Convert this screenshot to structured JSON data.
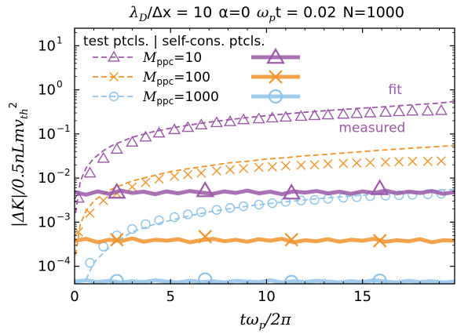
{
  "chart_data": {
    "type": "line",
    "title": "λ_D/Δx = 10  α=0  ω_p t = 0.02  N=1000",
    "title_parts": {
      "lambda_dx": "λ",
      "lambda_sub": "D",
      "lambda_rest": "/Δx = 10",
      "alpha": "α=0",
      "omega": "ω",
      "omega_sub": "p",
      "omega_rest": "t = 0.02",
      "n": "N=1000"
    },
    "xlabel": "tω_p/2π",
    "xlabel_parts": {
      "t": "tω",
      "sub": "p",
      "rest": "/2π"
    },
    "ylabel": "|ΔK|/0.5nLmv_th^2",
    "ylabel_parts": {
      "main": "|ΔK|/0.5nLmv",
      "sub": "th",
      "sup": "2"
    },
    "xlim": [
      0,
      19.8
    ],
    "ylim": [
      4e-05,
      25
    ],
    "yscale": "log",
    "xticks": [
      0,
      5,
      10,
      15
    ],
    "xtick_labels": [
      "0",
      "5",
      "10",
      "15"
    ],
    "yticks": [
      0.0001,
      0.001,
      0.01,
      0.1,
      1,
      10
    ],
    "ytick_labels": [
      {
        "base": "10",
        "exp": "−4"
      },
      {
        "base": "10",
        "exp": "−3"
      },
      {
        "base": "10",
        "exp": "−2"
      },
      {
        "base": "10",
        "exp": "−1"
      },
      {
        "base": "10",
        "exp": "0"
      },
      {
        "base": "10",
        "exp": "1"
      }
    ],
    "legend": {
      "position": "top-left",
      "header": "test ptcls.  |  self-cons. ptcls.",
      "entries": [
        {
          "label_main": "M",
          "label_sub": "ppc",
          "label_val": "=10",
          "color": "#9b59a8",
          "marker": "triangle"
        },
        {
          "label_main": "M",
          "label_sub": "ppc",
          "label_val": "=100",
          "color": "#f0932b",
          "marker": "x"
        },
        {
          "label_main": "M",
          "label_sub": "ppc",
          "label_val": "=1000",
          "color": "#90c3ea",
          "marker": "circle"
        }
      ]
    },
    "annotations": [
      {
        "text": "fit",
        "x": 16.7,
        "y": 0.8,
        "color": "#9b59a8"
      },
      {
        "text": "measured",
        "x": 15.5,
        "y": 0.11,
        "color": "#9b59a8"
      }
    ],
    "series": [
      {
        "kind": "fit",
        "color": "#9b59a8",
        "dash": "dashed",
        "x": [
          0.05,
          0.3,
          0.6,
          1,
          1.5,
          2,
          3,
          4,
          5,
          6,
          7,
          8,
          9,
          10,
          11,
          12,
          13,
          14,
          15,
          16,
          17,
          18,
          19,
          19.8
        ],
        "y": [
          0.0016,
          0.0085,
          0.017,
          0.028,
          0.042,
          0.056,
          0.084,
          0.11,
          0.135,
          0.16,
          0.185,
          0.21,
          0.235,
          0.26,
          0.285,
          0.31,
          0.335,
          0.36,
          0.385,
          0.41,
          0.44,
          0.47,
          0.5,
          0.55
        ]
      },
      {
        "kind": "fit",
        "color": "#f0932b",
        "dash": "dashed",
        "x": [
          0.05,
          0.3,
          0.6,
          1,
          1.5,
          2,
          3,
          4,
          5,
          6,
          7,
          8,
          9,
          10,
          11,
          12,
          13,
          14,
          15,
          16,
          17,
          18,
          19,
          19.8
        ],
        "y": [
          0.00018,
          0.0009,
          0.0018,
          0.003,
          0.0044,
          0.0058,
          0.0086,
          0.011,
          0.014,
          0.0165,
          0.019,
          0.022,
          0.024,
          0.027,
          0.029,
          0.032,
          0.034,
          0.037,
          0.04,
          0.043,
          0.046,
          0.049,
          0.052,
          0.055
        ]
      },
      {
        "kind": "fit",
        "color": "#90c3ea",
        "dash": "dashed",
        "x": [
          0.6,
          1,
          1.5,
          2,
          3,
          4,
          5,
          6,
          7,
          8,
          9,
          10,
          11,
          12,
          13,
          14,
          15,
          16,
          17,
          18,
          19,
          19.8
        ],
        "y": [
          5e-05,
          0.00012,
          0.0002,
          0.00032,
          0.0006,
          0.00085,
          0.0011,
          0.0014,
          0.0017,
          0.002,
          0.0023,
          0.0026,
          0.0029,
          0.0032,
          0.0035,
          0.0038,
          0.0041,
          0.0044,
          0.0047,
          0.005,
          0.0053,
          0.0055
        ]
      },
      {
        "kind": "test-markers",
        "color": "#9b59a8",
        "marker": "triangle",
        "x": [
          0.2,
          0.8,
          1.5,
          2.2,
          3.0,
          3.7,
          4.4,
          5.2,
          5.9,
          6.6,
          7.4,
          8.1,
          8.8,
          9.6,
          10.3,
          11.0,
          11.8,
          12.5,
          13.2,
          14.0,
          14.7,
          15.4,
          16.2,
          16.9,
          17.6,
          18.4,
          19.1
        ],
        "y": [
          0.0035,
          0.013,
          0.028,
          0.045,
          0.065,
          0.085,
          0.105,
          0.125,
          0.14,
          0.16,
          0.18,
          0.19,
          0.21,
          0.22,
          0.23,
          0.24,
          0.25,
          0.26,
          0.27,
          0.28,
          0.29,
          0.3,
          0.31,
          0.32,
          0.33,
          0.33,
          0.34
        ]
      },
      {
        "kind": "test-markers",
        "color": "#f0932b",
        "marker": "x",
        "x": [
          0.2,
          0.8,
          1.5,
          2.2,
          3.0,
          3.7,
          4.4,
          5.2,
          5.9,
          6.6,
          7.4,
          8.1,
          8.8,
          9.6,
          10.3,
          11.0,
          11.8,
          12.5,
          13.2,
          14.0,
          14.7,
          15.4,
          16.2,
          16.9,
          17.6,
          18.4,
          19.1
        ],
        "y": [
          0.0006,
          0.0016,
          0.0031,
          0.0045,
          0.0063,
          0.008,
          0.0095,
          0.011,
          0.012,
          0.013,
          0.0145,
          0.0155,
          0.0165,
          0.0175,
          0.018,
          0.019,
          0.0195,
          0.02,
          0.021,
          0.0215,
          0.022,
          0.0225,
          0.023,
          0.0235,
          0.024,
          0.024,
          0.0245
        ]
      },
      {
        "kind": "test-markers",
        "color": "#90c3ea",
        "marker": "circle",
        "x": [
          0.8,
          1.5,
          2.2,
          3.0,
          3.7,
          4.4,
          5.2,
          5.9,
          6.6,
          7.4,
          8.1,
          8.8,
          9.6,
          10.3,
          11.0,
          11.8,
          12.5,
          13.2,
          14.0,
          14.7,
          15.4,
          16.2,
          16.9,
          17.6,
          18.4,
          19.1
        ],
        "y": [
          0.00012,
          0.00028,
          0.0005,
          0.0007,
          0.0009,
          0.0011,
          0.0013,
          0.0015,
          0.0017,
          0.0019,
          0.0021,
          0.0023,
          0.0025,
          0.0027,
          0.0029,
          0.0031,
          0.0032,
          0.0034,
          0.0036,
          0.0037,
          0.0039,
          0.004,
          0.0041,
          0.0042,
          0.0043,
          0.0044
        ]
      },
      {
        "kind": "self-consistent",
        "color": "#9b59a8",
        "marker": "triangle",
        "x": [
          0.0,
          0.6,
          1.2,
          1.8,
          2.4,
          3.0,
          3.6,
          4.2,
          4.8,
          5.4,
          6.0,
          6.6,
          7.2,
          7.8,
          8.4,
          9.0,
          9.6,
          10.2,
          10.8,
          11.4,
          12.0,
          12.6,
          13.2,
          13.8,
          14.4,
          15.0,
          15.6,
          16.2,
          16.8,
          17.4,
          18.0,
          18.6,
          19.2,
          19.8
        ],
        "y": [
          0.0048,
          0.0042,
          0.005,
          0.0044,
          0.0052,
          0.0046,
          0.0049,
          0.0043,
          0.005,
          0.0045,
          0.0051,
          0.0047,
          0.0044,
          0.005,
          0.0046,
          0.0052,
          0.0045,
          0.0049,
          0.0043,
          0.005,
          0.0047,
          0.0051,
          0.0045,
          0.0049,
          0.0044,
          0.005,
          0.0046,
          0.0052,
          0.0045,
          0.0049,
          0.0046,
          0.0051,
          0.0044,
          0.0048
        ],
        "marker_x": [
          2.2,
          6.8,
          11.3,
          15.9
        ],
        "marker_y": [
          0.0048,
          0.0052,
          0.0046,
          0.0058
        ]
      },
      {
        "kind": "self-consistent",
        "color": "#f0932b",
        "marker": "x",
        "x": [
          0.0,
          0.6,
          1.2,
          1.8,
          2.4,
          3.0,
          3.6,
          4.2,
          4.8,
          5.4,
          6.0,
          6.6,
          7.2,
          7.8,
          8.4,
          9.0,
          9.6,
          10.2,
          10.8,
          11.4,
          12.0,
          12.6,
          13.2,
          13.8,
          14.4,
          15.0,
          15.6,
          16.2,
          16.8,
          17.4,
          18.0,
          18.6,
          19.2,
          19.8
        ],
        "y": [
          0.00038,
          0.00042,
          0.00035,
          0.0004,
          0.00037,
          0.00043,
          0.00036,
          0.0004,
          0.00038,
          0.00041,
          0.00035,
          0.00039,
          0.00042,
          0.00037,
          0.0004,
          0.00036,
          0.00041,
          0.00038,
          0.00042,
          0.00035,
          0.00039,
          0.00037,
          0.00041,
          0.00036,
          0.0004,
          0.00038,
          0.00042,
          0.00036,
          0.00039,
          0.00037,
          0.00041,
          0.00035,
          0.00039,
          0.00038
        ],
        "marker_x": [
          2.2,
          6.8,
          11.3,
          15.9
        ],
        "marker_y": [
          0.0004,
          0.00047,
          0.0004,
          0.00038
        ]
      },
      {
        "kind": "self-consistent",
        "color": "#90c3ea",
        "marker": "circle",
        "x": [
          0.0,
          0.6,
          1.2,
          1.8,
          2.4,
          3.0,
          3.6,
          4.2,
          4.8,
          5.4,
          6.0,
          6.6,
          7.2,
          7.8,
          8.4,
          9.0,
          9.6,
          10.2,
          10.8,
          11.4,
          12.0,
          12.6,
          13.2,
          13.8,
          14.4,
          15.0,
          15.6,
          16.2,
          16.8,
          17.4,
          18.0,
          18.6,
          19.2,
          19.8
        ],
        "y": [
          4.5e-05,
          4.8e-05,
          4.4e-05,
          4.7e-05,
          4.3e-05,
          4.6e-05,
          4.4e-05,
          4.8e-05,
          4.5e-05,
          4.3e-05,
          4.7e-05,
          4.4e-05,
          4.6e-05,
          4.3e-05,
          4.7e-05,
          4.5e-05,
          4.4e-05,
          4.8e-05,
          4.3e-05,
          4.6e-05,
          4.4e-05,
          4.7e-05,
          4.5e-05,
          4.3e-05,
          4.6e-05,
          4.4e-05,
          4.8e-05,
          4.5e-05,
          4.3e-05,
          4.7e-05,
          4.4e-05,
          4.6e-05,
          4.3e-05,
          4.5e-05
        ],
        "marker_x": [
          2.2,
          6.8,
          11.3,
          15.9
        ],
        "marker_y": [
          4.6e-05,
          5e-05,
          4.4e-05,
          4.7e-05
        ]
      }
    ]
  }
}
